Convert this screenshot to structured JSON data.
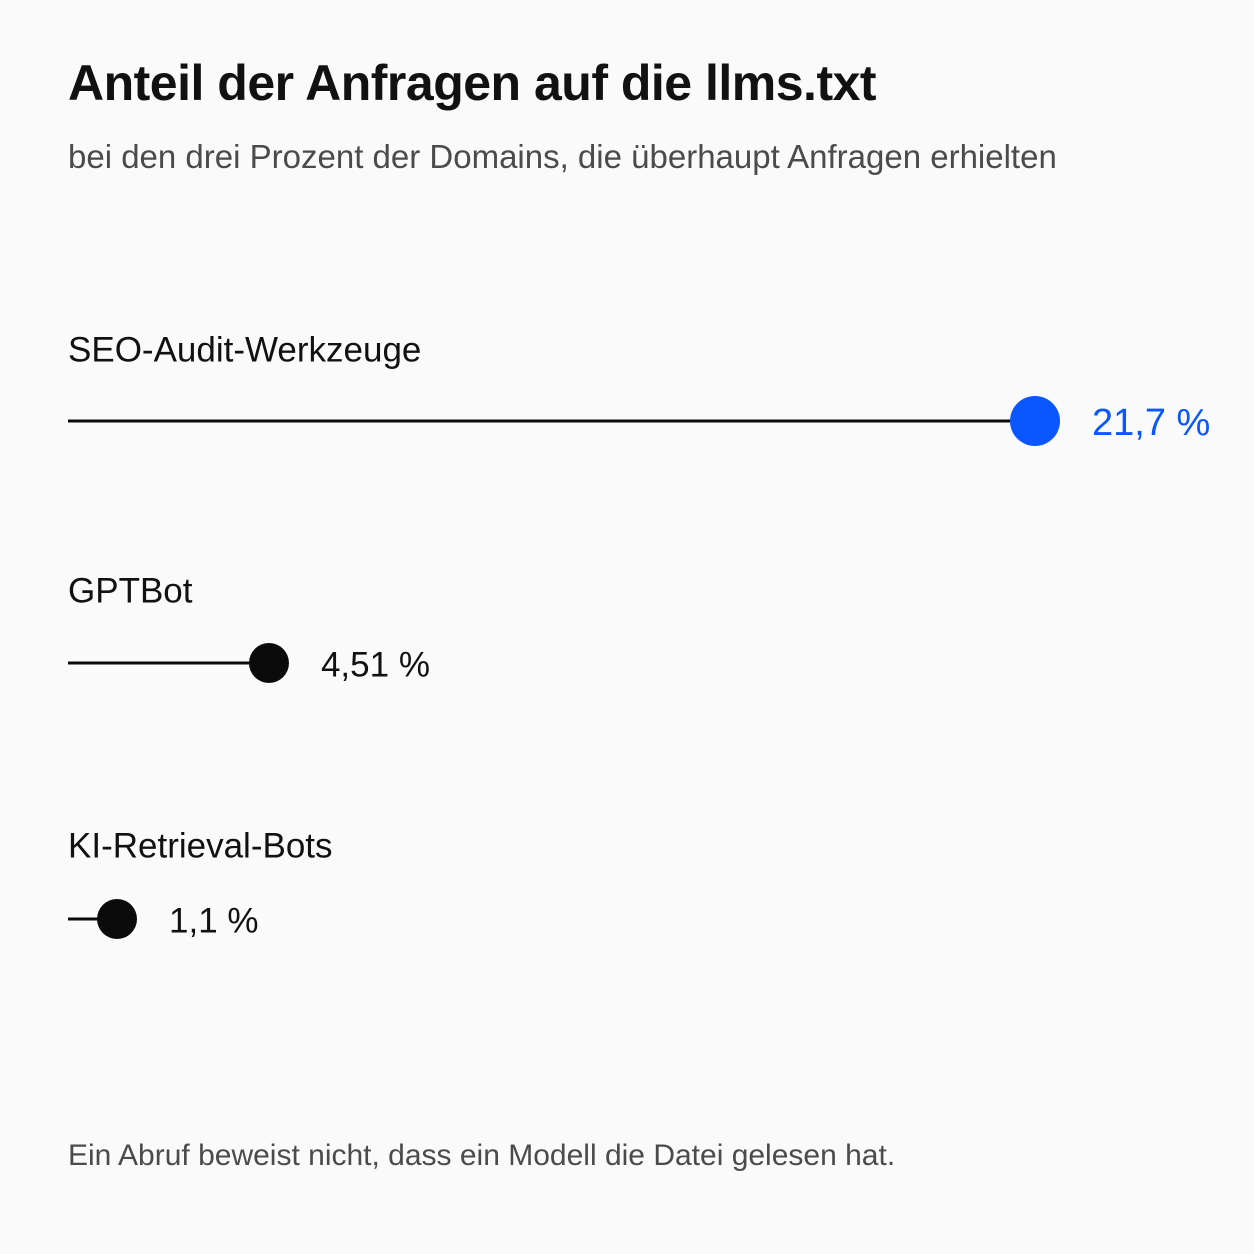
{
  "colors": {
    "background": "#fafafa",
    "text": "#111111",
    "muted": "#4b4b4b",
    "accent": "#0a57ff",
    "default_mark": "#0b0b0b"
  },
  "chart_data": {
    "type": "lollipop",
    "title": "Anteil der Anfragen auf die llms.txt",
    "subtitle": "bei den drei Prozent der Domains, die überhaupt Anfragen erhielten",
    "unit": "%",
    "xlim": [
      0,
      22.5
    ],
    "grid": false,
    "legend": "none",
    "categories": [
      "SEO-Audit-Werkzeuge",
      "GPTBot",
      "KI-Retrieval-Bots"
    ],
    "values": [
      21.7,
      4.51,
      1.1
    ],
    "value_labels": [
      "21,7 %",
      "4,51 %",
      "1,1 %"
    ],
    "highlight": [
      "SEO-Audit-Werkzeuge"
    ],
    "footnote": "Ein Abruf beweist nicht, dass ein Modell die Datei gelesen hat."
  }
}
